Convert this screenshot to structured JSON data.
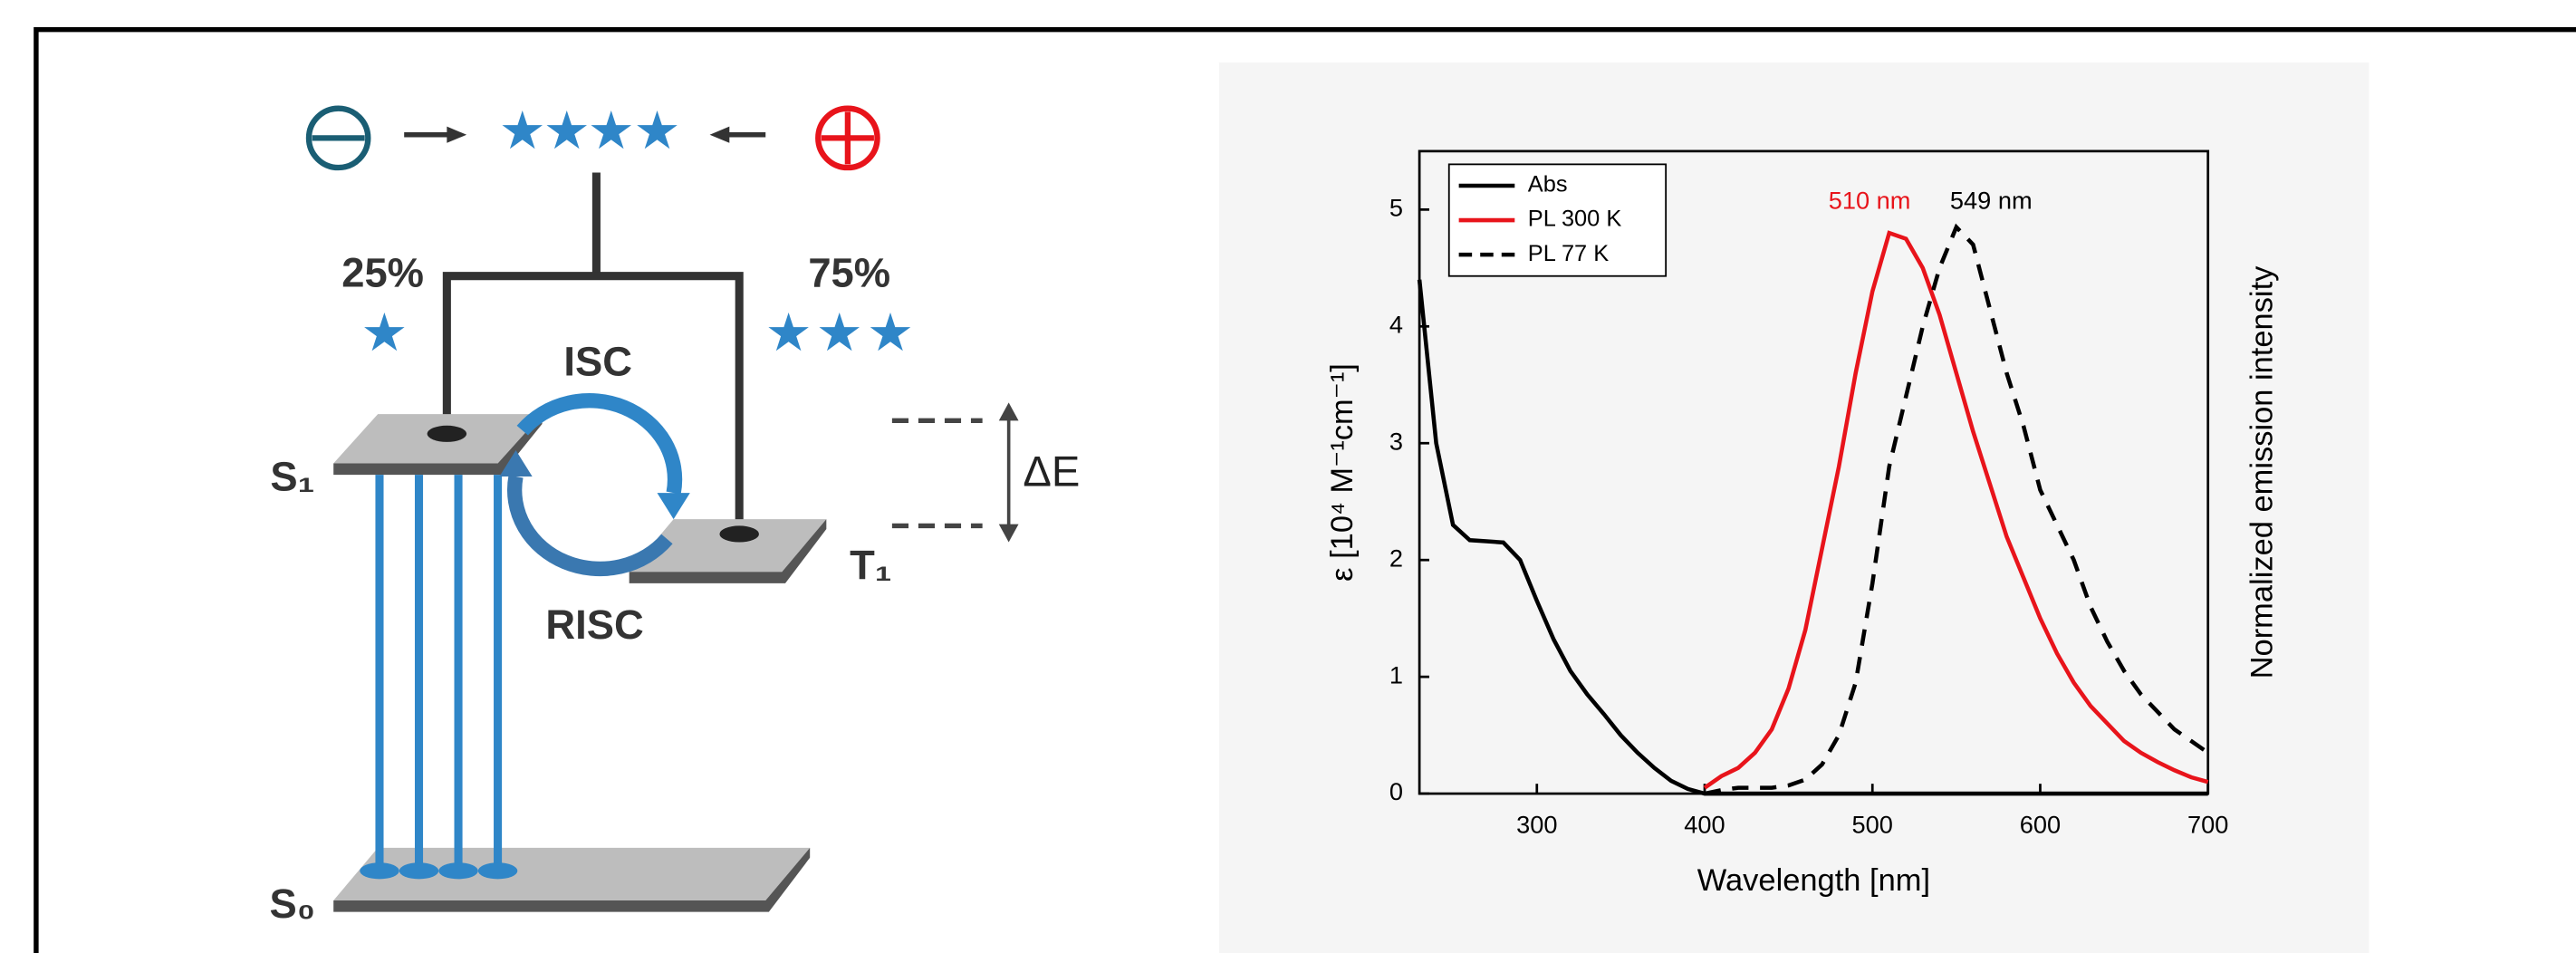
{
  "diagram": {
    "singlet_fraction": "25%",
    "triplet_fraction": "75%",
    "isc": "ISC",
    "risc": "RISC",
    "gap": "ΔE",
    "s1": "S₁",
    "t1": "T₁",
    "s0": "S₀"
  },
  "chart_data": {
    "type": "line",
    "xlabel": "Wavelength [nm]",
    "ylabel": "ε [10⁴ M⁻¹cm⁻¹]",
    "y2label": "Normalized emission intensity",
    "xlim": [
      230,
      700
    ],
    "xticks": [
      300,
      400,
      500,
      600,
      700
    ],
    "ylim": [
      0,
      5.5
    ],
    "yticks": [
      0,
      1,
      2,
      3,
      4,
      5
    ],
    "x": [
      230,
      240,
      250,
      260,
      270,
      280,
      290,
      300,
      310,
      320,
      330,
      340,
      350,
      360,
      370,
      380,
      390,
      400,
      410,
      420,
      430,
      440,
      450,
      460,
      470,
      480,
      490,
      500,
      510,
      520,
      530,
      540,
      550,
      560,
      570,
      580,
      590,
      600,
      610,
      620,
      630,
      640,
      650,
      660,
      670,
      680,
      690,
      700
    ],
    "series": [
      {
        "name": "Abs",
        "color": "#000000",
        "dash": false,
        "values": [
          4.4,
          3.0,
          2.3,
          2.17,
          2.16,
          2.15,
          2.0,
          1.65,
          1.32,
          1.05,
          0.85,
          0.68,
          0.5,
          0.35,
          0.22,
          0.11,
          0.04,
          0,
          0,
          0,
          0,
          0,
          0,
          0,
          0,
          0,
          0,
          0,
          0,
          0,
          0,
          0,
          0,
          0,
          0,
          0,
          0,
          0,
          0,
          0,
          0,
          0,
          0,
          0,
          0,
          0,
          0,
          0
        ]
      },
      {
        "name": "PL 300 K",
        "color": "#e8141b",
        "dash": false,
        "values": [
          null,
          null,
          null,
          null,
          null,
          null,
          null,
          null,
          null,
          null,
          null,
          null,
          null,
          null,
          null,
          null,
          null,
          0.05,
          0.15,
          0.22,
          0.35,
          0.55,
          0.9,
          1.4,
          2.1,
          2.8,
          3.6,
          4.3,
          4.8,
          4.75,
          4.5,
          4.1,
          3.6,
          3.1,
          2.65,
          2.2,
          1.85,
          1.5,
          1.2,
          0.95,
          0.75,
          0.6,
          0.45,
          0.35,
          0.27,
          0.2,
          0.14,
          0.1
        ]
      },
      {
        "name": "PL 77 K",
        "color": "#000000",
        "dash": true,
        "values": [
          null,
          null,
          null,
          null,
          null,
          null,
          null,
          null,
          null,
          null,
          null,
          null,
          null,
          null,
          null,
          null,
          null,
          0,
          0.03,
          0.05,
          0.05,
          0.05,
          0.07,
          0.12,
          0.25,
          0.5,
          0.95,
          1.8,
          2.8,
          3.4,
          4.0,
          4.5,
          4.85,
          4.7,
          4.15,
          3.6,
          3.15,
          2.6,
          2.3,
          2.0,
          1.6,
          1.3,
          1.05,
          0.85,
          0.7,
          0.55,
          0.45,
          0.35
        ]
      }
    ],
    "annotations": [
      {
        "text": "510 nm",
        "color": "#e8141b"
      },
      {
        "text": "549 nm",
        "color": "#000000"
      }
    ],
    "legend": "upper left"
  }
}
